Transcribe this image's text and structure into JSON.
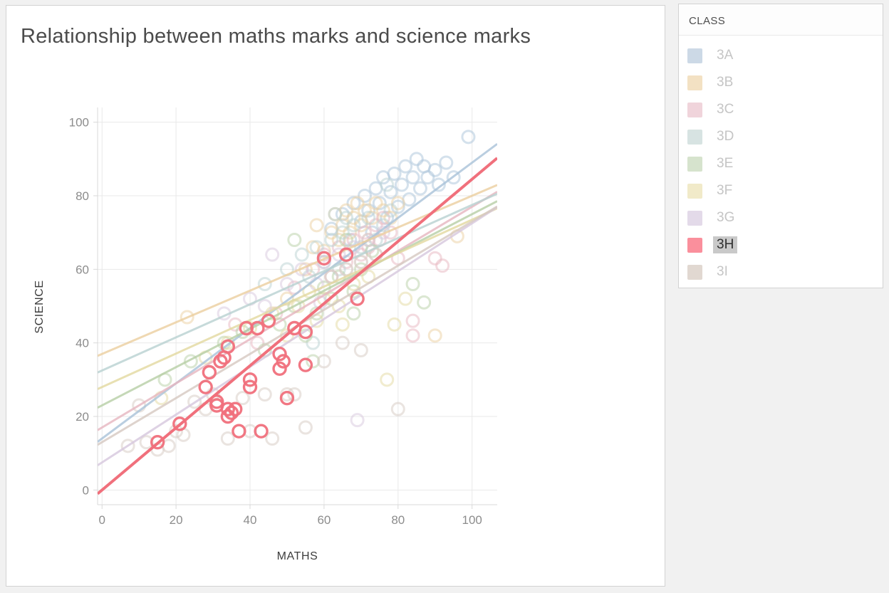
{
  "title": "Relationship between maths marks and science marks",
  "legend": {
    "header": "CLASS",
    "items": [
      {
        "label": "3A",
        "swatch": "#ccd9e6",
        "selected": false
      },
      {
        "label": "3B",
        "swatch": "#f3e1c3",
        "selected": false
      },
      {
        "label": "3C",
        "swatch": "#f0d4db",
        "selected": false
      },
      {
        "label": "3D",
        "swatch": "#d7e3e2",
        "selected": false
      },
      {
        "label": "3E",
        "swatch": "#d6e3cd",
        "selected": false
      },
      {
        "label": "3F",
        "swatch": "#f1eac9",
        "selected": false
      },
      {
        "label": "3G",
        "swatch": "#e3dae9",
        "selected": false
      },
      {
        "label": "3H",
        "swatch": "#fa8f9c",
        "selected": true
      },
      {
        "label": "3I",
        "swatch": "#e1d8d1",
        "selected": false
      }
    ],
    "selected_label_bg": "#c9c9c9",
    "selected_label_color": "#2f2f2f"
  },
  "chart_data": {
    "type": "scatter",
    "title": "Relationship between maths marks and science marks",
    "xlabel": "MATHS",
    "ylabel": "SCIENCE",
    "xlim": [
      -1.2,
      106.8
    ],
    "ylim": [
      -4,
      104
    ],
    "x_ticks": [
      0,
      20,
      40,
      60,
      80,
      100
    ],
    "y_ticks": [
      0,
      20,
      40,
      60,
      80,
      100
    ],
    "grid": true,
    "legend_position": "right",
    "highlighted_series": "3H",
    "grid_color": "#e9e9e9",
    "axis_color": "#d9d9d9",
    "tick_label_color": "#8c8c8c",
    "series": [
      {
        "name": "3A",
        "color": "#a9c3d9",
        "faded": true,
        "trend": {
          "intercept": 14,
          "slope": 0.75
        },
        "points": [
          [
            62,
            71
          ],
          [
            65,
            75
          ],
          [
            67,
            68
          ],
          [
            68,
            78
          ],
          [
            70,
            73
          ],
          [
            71,
            80
          ],
          [
            72,
            76
          ],
          [
            73,
            70
          ],
          [
            74,
            82
          ],
          [
            75,
            78
          ],
          [
            76,
            85
          ],
          [
            77,
            74
          ],
          [
            78,
            81
          ],
          [
            79,
            86
          ],
          [
            80,
            77
          ],
          [
            81,
            83
          ],
          [
            82,
            88
          ],
          [
            83,
            79
          ],
          [
            84,
            85
          ],
          [
            85,
            90
          ],
          [
            86,
            82
          ],
          [
            87,
            88
          ],
          [
            88,
            85
          ],
          [
            90,
            87
          ],
          [
            91,
            83
          ],
          [
            93,
            89
          ],
          [
            95,
            85
          ],
          [
            99,
            96
          ]
        ]
      },
      {
        "name": "3B",
        "color": "#eccf9f",
        "faded": true,
        "trend": {
          "intercept": 37,
          "slope": 0.43
        },
        "points": [
          [
            23,
            47
          ],
          [
            50,
            52
          ],
          [
            55,
            60
          ],
          [
            57,
            66
          ],
          [
            58,
            72
          ],
          [
            60,
            65
          ],
          [
            62,
            70
          ],
          [
            63,
            75
          ],
          [
            64,
            68
          ],
          [
            65,
            72
          ],
          [
            66,
            76
          ],
          [
            67,
            70
          ],
          [
            68,
            74
          ],
          [
            69,
            78
          ],
          [
            70,
            72
          ],
          [
            71,
            76
          ],
          [
            72,
            68
          ],
          [
            73,
            74
          ],
          [
            74,
            78
          ],
          [
            76,
            76
          ],
          [
            78,
            74
          ],
          [
            80,
            78
          ],
          [
            90,
            42
          ],
          [
            96,
            69
          ]
        ]
      },
      {
        "name": "3C",
        "color": "#e7b6c0",
        "faded": true,
        "trend": {
          "intercept": 17,
          "slope": 0.6
        },
        "points": [
          [
            36,
            45
          ],
          [
            42,
            40
          ],
          [
            47,
            48
          ],
          [
            52,
            55
          ],
          [
            57,
            60
          ],
          [
            60,
            64
          ],
          [
            62,
            58
          ],
          [
            64,
            66
          ],
          [
            66,
            62
          ],
          [
            68,
            68
          ],
          [
            70,
            64
          ],
          [
            71,
            70
          ],
          [
            72,
            66
          ],
          [
            74,
            72
          ],
          [
            75,
            68
          ],
          [
            76,
            74
          ],
          [
            78,
            70
          ],
          [
            80,
            63
          ],
          [
            84,
            46
          ],
          [
            84,
            42
          ],
          [
            90,
            63
          ],
          [
            92,
            61
          ]
        ]
      },
      {
        "name": "3D",
        "color": "#b9d2d1",
        "faded": true,
        "trend": {
          "intercept": 32.5,
          "slope": 0.45
        },
        "points": [
          [
            44,
            56
          ],
          [
            50,
            60
          ],
          [
            54,
            64
          ],
          [
            56,
            58
          ],
          [
            57,
            40
          ],
          [
            58,
            66
          ],
          [
            60,
            62
          ],
          [
            62,
            68
          ],
          [
            63,
            75
          ],
          [
            64,
            60
          ],
          [
            65,
            70
          ],
          [
            66,
            74
          ],
          [
            68,
            72
          ],
          [
            70,
            66
          ],
          [
            72,
            74
          ],
          [
            74,
            68
          ],
          [
            76,
            72
          ],
          [
            77,
            83
          ],
          [
            78,
            76
          ]
        ]
      },
      {
        "name": "3E",
        "color": "#b7cfa6",
        "faded": true,
        "trend": {
          "intercept": 23,
          "slope": 0.52
        },
        "points": [
          [
            17,
            30
          ],
          [
            24,
            35
          ],
          [
            33,
            40
          ],
          [
            38,
            43
          ],
          [
            44,
            38
          ],
          [
            48,
            45
          ],
          [
            52,
            68
          ],
          [
            52,
            50
          ],
          [
            55,
            42
          ],
          [
            57,
            35
          ],
          [
            58,
            48
          ],
          [
            60,
            55
          ],
          [
            62,
            52
          ],
          [
            64,
            58
          ],
          [
            66,
            68
          ],
          [
            68,
            54
          ],
          [
            68,
            48
          ],
          [
            70,
            60
          ],
          [
            73,
            65
          ],
          [
            84,
            56
          ],
          [
            87,
            51
          ]
        ]
      },
      {
        "name": "3F",
        "color": "#e3d9a0",
        "faded": true,
        "trend": {
          "intercept": 28,
          "slope": 0.455
        },
        "points": [
          [
            16,
            25
          ],
          [
            28,
            36
          ],
          [
            34,
            40
          ],
          [
            40,
            44
          ],
          [
            46,
            48
          ],
          [
            50,
            42
          ],
          [
            53,
            50
          ],
          [
            56,
            54
          ],
          [
            58,
            46
          ],
          [
            60,
            52
          ],
          [
            62,
            58
          ],
          [
            64,
            50
          ],
          [
            65,
            45
          ],
          [
            66,
            60
          ],
          [
            68,
            56
          ],
          [
            70,
            62
          ],
          [
            72,
            58
          ],
          [
            74,
            64
          ],
          [
            77,
            30
          ],
          [
            79,
            45
          ],
          [
            82,
            52
          ]
        ]
      },
      {
        "name": "3G",
        "color": "#d7c8de",
        "faded": true,
        "trend": {
          "intercept": 7.5,
          "slope": 0.65
        },
        "points": [
          [
            33,
            48
          ],
          [
            40,
            52
          ],
          [
            44,
            50
          ],
          [
            46,
            64
          ],
          [
            50,
            56
          ],
          [
            54,
            60
          ],
          [
            58,
            56
          ],
          [
            59,
            51
          ],
          [
            60,
            62
          ],
          [
            62,
            58
          ],
          [
            64,
            64
          ],
          [
            66,
            60
          ],
          [
            68,
            66
          ],
          [
            69,
            19
          ],
          [
            70,
            62
          ],
          [
            72,
            68
          ],
          [
            74,
            64
          ],
          [
            76,
            70
          ]
        ]
      },
      {
        "name": "3I",
        "color": "#d6c9c1",
        "faded": true,
        "trend": {
          "intercept": 13,
          "slope": 0.6
        },
        "points": [
          [
            7,
            12
          ],
          [
            10,
            23
          ],
          [
            12,
            13
          ],
          [
            15,
            11
          ],
          [
            18,
            12
          ],
          [
            20,
            16
          ],
          [
            22,
            15
          ],
          [
            25,
            24
          ],
          [
            28,
            22
          ],
          [
            30,
            26
          ],
          [
            34,
            14
          ],
          [
            38,
            25
          ],
          [
            40,
            16
          ],
          [
            44,
            26
          ],
          [
            46,
            14
          ],
          [
            50,
            26
          ],
          [
            52,
            26
          ],
          [
            55,
            17
          ],
          [
            60,
            35
          ],
          [
            65,
            40
          ],
          [
            70,
            38
          ],
          [
            80,
            22
          ]
        ]
      },
      {
        "name": "3H",
        "color": "#f0707c",
        "faded": false,
        "trend": {
          "intercept": 0,
          "slope": 0.845
        },
        "points": [
          [
            15,
            13
          ],
          [
            21,
            18
          ],
          [
            28,
            28
          ],
          [
            29,
            32
          ],
          [
            31,
            24
          ],
          [
            31,
            23
          ],
          [
            32,
            35
          ],
          [
            33,
            36
          ],
          [
            34,
            39
          ],
          [
            34,
            22
          ],
          [
            34,
            20
          ],
          [
            35,
            21
          ],
          [
            36,
            22
          ],
          [
            37,
            16
          ],
          [
            39,
            44
          ],
          [
            40,
            30
          ],
          [
            40,
            28
          ],
          [
            42,
            44
          ],
          [
            43,
            16
          ],
          [
            45,
            46
          ],
          [
            48,
            37
          ],
          [
            49,
            35
          ],
          [
            48,
            33
          ],
          [
            50,
            25
          ],
          [
            52,
            44
          ],
          [
            55,
            43
          ],
          [
            55,
            34
          ],
          [
            60,
            63
          ],
          [
            66,
            64
          ],
          [
            69,
            52
          ]
        ]
      }
    ]
  }
}
